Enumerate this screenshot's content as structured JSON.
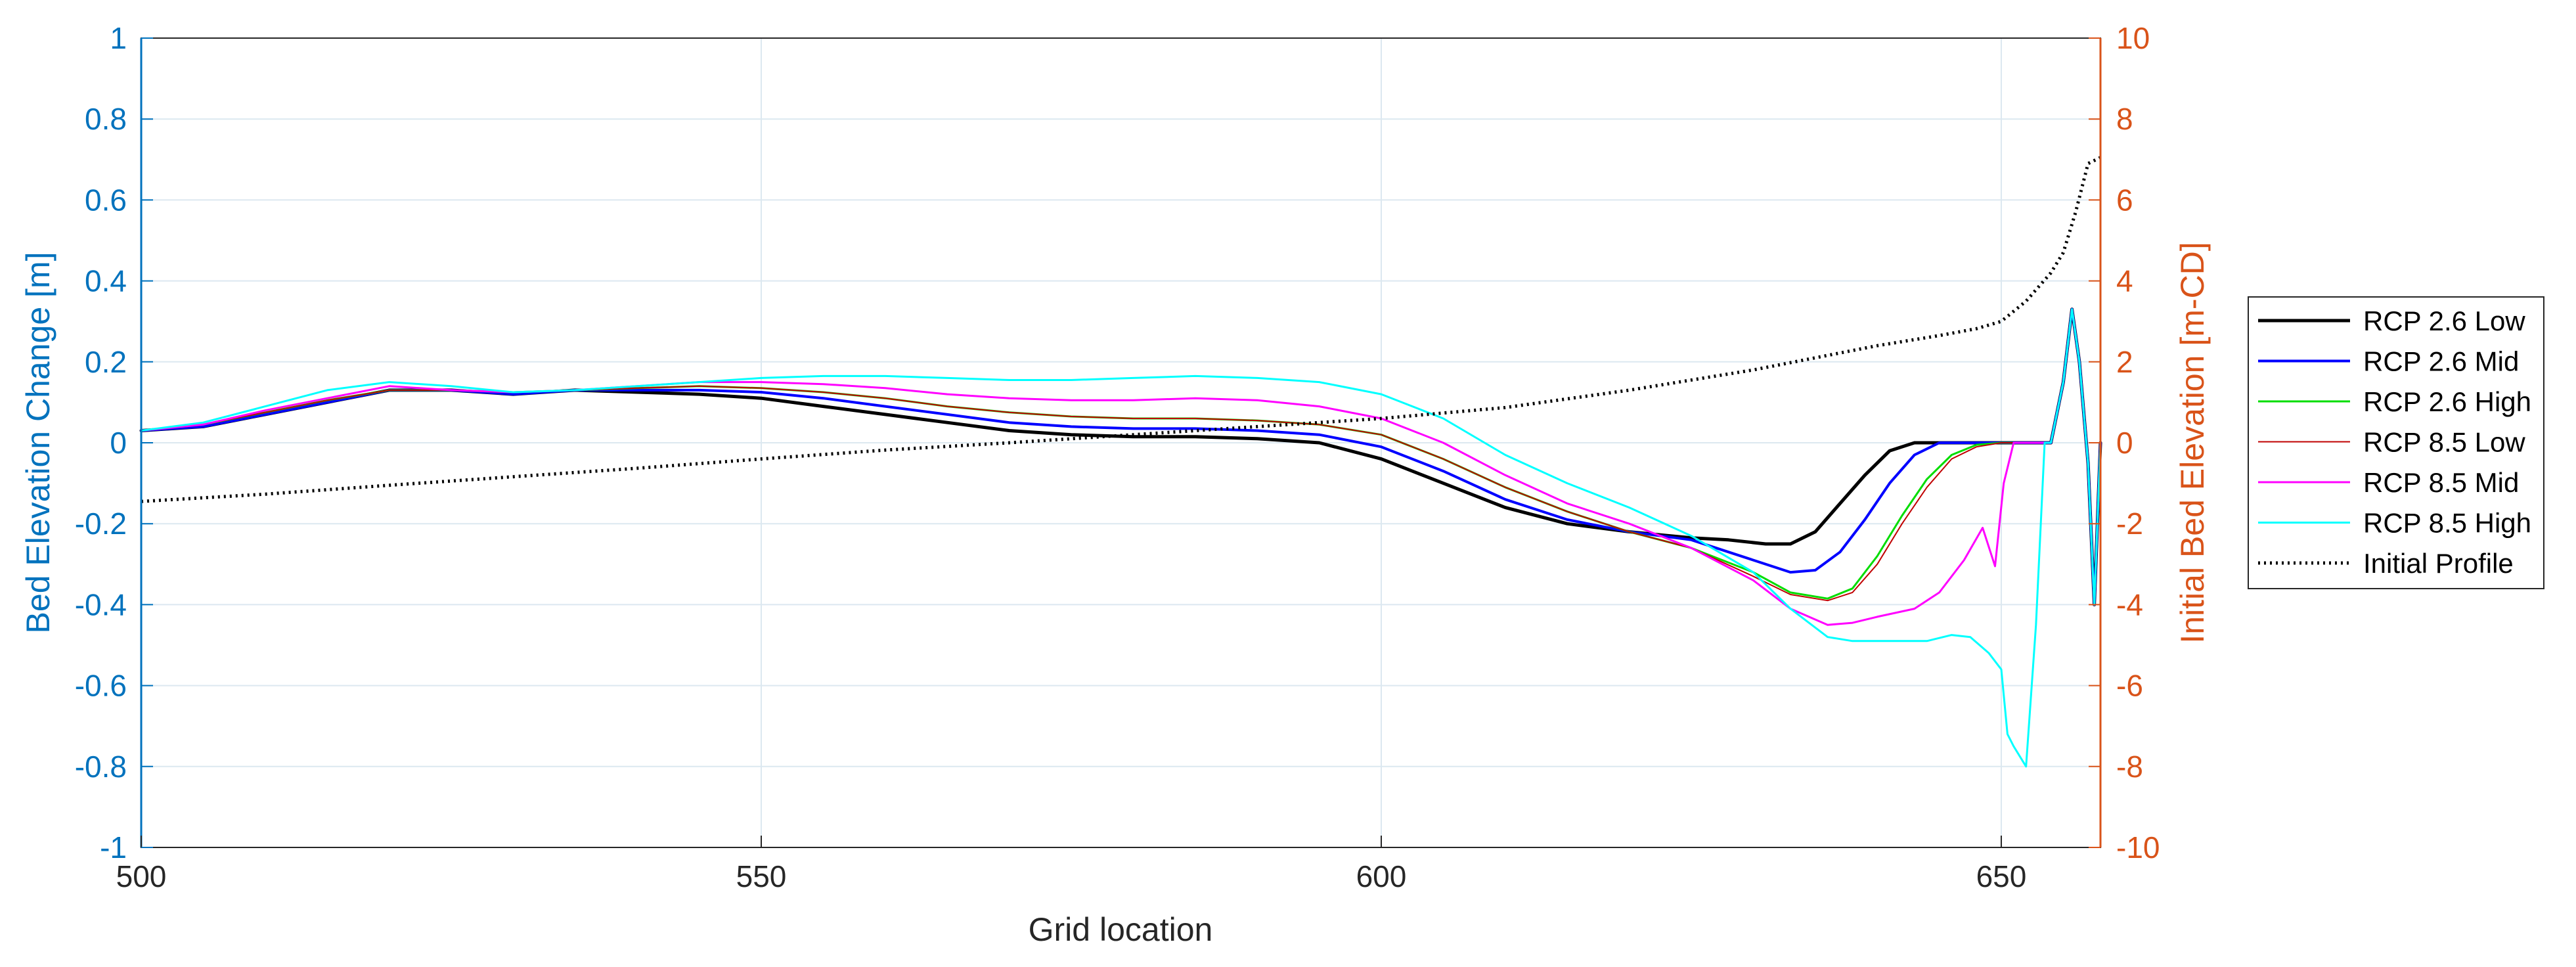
{
  "chart_data": {
    "type": "line",
    "title": "",
    "xlabel": "Grid location",
    "ylabel_left": "Bed Elevation Change [m]",
    "ylabel_right": "Initial Bed Elevation [m-CD]",
    "xlim": [
      500,
      658
    ],
    "ylim_left": [
      -1,
      1
    ],
    "ylim_right": [
      -10,
      10
    ],
    "x_ticks": [
      "500",
      "550",
      "600",
      "650"
    ],
    "x_tick_values": [
      500,
      550,
      600,
      650
    ],
    "y_left_ticks": [
      "1",
      "0.8",
      "0.6",
      "0.4",
      "0.2",
      "0",
      "-0.2",
      "-0.4",
      "-0.6",
      "-0.8",
      "-1"
    ],
    "y_left_tick_values": [
      1,
      0.8,
      0.6,
      0.4,
      0.2,
      0,
      -0.2,
      -0.4,
      -0.6,
      -0.8,
      -1
    ],
    "y_right_ticks": [
      "10",
      "8",
      "6",
      "4",
      "2",
      "0",
      "-2",
      "-4",
      "-6",
      "-8",
      "-10"
    ],
    "y_right_tick_values": [
      10,
      8,
      6,
      4,
      2,
      0,
      -2,
      -4,
      -6,
      -8,
      -10
    ],
    "grid": true,
    "legend_position": "right",
    "series": [
      {
        "name": "RCP 2.6 Low",
        "color": "#000000",
        "axis": "left",
        "style": "solid",
        "width": 5,
        "points": [
          [
            500,
            0.03
          ],
          [
            505,
            0.04
          ],
          [
            510,
            0.07
          ],
          [
            515,
            0.1
          ],
          [
            520,
            0.13
          ],
          [
            525,
            0.13
          ],
          [
            530,
            0.12
          ],
          [
            535,
            0.13
          ],
          [
            540,
            0.125
          ],
          [
            545,
            0.12
          ],
          [
            550,
            0.11
          ],
          [
            555,
            0.09
          ],
          [
            560,
            0.07
          ],
          [
            565,
            0.05
          ],
          [
            570,
            0.03
          ],
          [
            575,
            0.02
          ],
          [
            580,
            0.015
          ],
          [
            585,
            0.015
          ],
          [
            590,
            0.01
          ],
          [
            595,
            0.0
          ],
          [
            600,
            -0.04
          ],
          [
            605,
            -0.1
          ],
          [
            610,
            -0.16
          ],
          [
            615,
            -0.2
          ],
          [
            620,
            -0.22
          ],
          [
            625,
            -0.235
          ],
          [
            628,
            -0.24
          ],
          [
            631,
            -0.25
          ],
          [
            633,
            -0.25
          ],
          [
            635,
            -0.22
          ],
          [
            637,
            -0.15
          ],
          [
            639,
            -0.08
          ],
          [
            641,
            -0.02
          ],
          [
            643,
            0.0
          ],
          [
            645,
            0.0
          ],
          [
            648,
            0.0
          ],
          [
            651,
            0.0
          ],
          [
            653,
            0.0
          ],
          [
            654,
            0.0
          ],
          [
            655,
            0.15
          ],
          [
            655.7,
            0.33
          ],
          [
            656.3,
            0.2
          ],
          [
            657,
            -0.05
          ],
          [
            657.5,
            -0.4
          ],
          [
            658,
            0.0
          ]
        ]
      },
      {
        "name": "RCP 2.6 Mid",
        "color": "#0000FF",
        "axis": "left",
        "style": "solid",
        "width": 4,
        "points": [
          [
            500,
            0.03
          ],
          [
            505,
            0.04
          ],
          [
            510,
            0.07
          ],
          [
            515,
            0.1
          ],
          [
            520,
            0.13
          ],
          [
            525,
            0.13
          ],
          [
            530,
            0.12
          ],
          [
            535,
            0.13
          ],
          [
            540,
            0.13
          ],
          [
            545,
            0.13
          ],
          [
            550,
            0.125
          ],
          [
            555,
            0.11
          ],
          [
            560,
            0.09
          ],
          [
            565,
            0.07
          ],
          [
            570,
            0.05
          ],
          [
            575,
            0.04
          ],
          [
            580,
            0.035
          ],
          [
            585,
            0.035
          ],
          [
            590,
            0.03
          ],
          [
            595,
            0.02
          ],
          [
            600,
            -0.01
          ],
          [
            605,
            -0.07
          ],
          [
            610,
            -0.14
          ],
          [
            615,
            -0.19
          ],
          [
            620,
            -0.22
          ],
          [
            625,
            -0.24
          ],
          [
            630,
            -0.29
          ],
          [
            633,
            -0.32
          ],
          [
            635,
            -0.315
          ],
          [
            637,
            -0.27
          ],
          [
            639,
            -0.19
          ],
          [
            641,
            -0.1
          ],
          [
            643,
            -0.03
          ],
          [
            645,
            0.0
          ],
          [
            648,
            0.0
          ],
          [
            651,
            0.0
          ],
          [
            653,
            0.0
          ],
          [
            654,
            0.0
          ],
          [
            655,
            0.15
          ],
          [
            655.7,
            0.33
          ],
          [
            656.3,
            0.2
          ],
          [
            657,
            -0.05
          ],
          [
            657.5,
            -0.4
          ],
          [
            658,
            0.0
          ]
        ]
      },
      {
        "name": "RCP 2.6 High",
        "color": "#00DD00",
        "axis": "left",
        "style": "solid",
        "width": 3,
        "points": [
          [
            500,
            0.03
          ],
          [
            505,
            0.045
          ],
          [
            510,
            0.075
          ],
          [
            515,
            0.105
          ],
          [
            520,
            0.13
          ],
          [
            525,
            0.13
          ],
          [
            530,
            0.125
          ],
          [
            535,
            0.13
          ],
          [
            540,
            0.135
          ],
          [
            545,
            0.14
          ],
          [
            550,
            0.135
          ],
          [
            555,
            0.125
          ],
          [
            560,
            0.11
          ],
          [
            565,
            0.09
          ],
          [
            570,
            0.075
          ],
          [
            575,
            0.065
          ],
          [
            580,
            0.06
          ],
          [
            585,
            0.06
          ],
          [
            590,
            0.055
          ],
          [
            595,
            0.045
          ],
          [
            600,
            0.02
          ],
          [
            605,
            -0.04
          ],
          [
            610,
            -0.11
          ],
          [
            615,
            -0.17
          ],
          [
            620,
            -0.22
          ],
          [
            625,
            -0.26
          ],
          [
            630,
            -0.32
          ],
          [
            633,
            -0.37
          ],
          [
            636,
            -0.385
          ],
          [
            638,
            -0.36
          ],
          [
            640,
            -0.28
          ],
          [
            642,
            -0.18
          ],
          [
            644,
            -0.09
          ],
          [
            646,
            -0.03
          ],
          [
            648,
            -0.005
          ],
          [
            650,
            0.0
          ],
          [
            652,
            0.0
          ],
          [
            654,
            0.0
          ],
          [
            655,
            0.15
          ],
          [
            655.7,
            0.33
          ],
          [
            656.3,
            0.2
          ],
          [
            657,
            -0.05
          ],
          [
            657.5,
            -0.4
          ],
          [
            658,
            0.0
          ]
        ]
      },
      {
        "name": "RCP 8.5 Low",
        "color": "#C00000",
        "axis": "left",
        "style": "solid",
        "width": 2,
        "points": [
          [
            500,
            0.03
          ],
          [
            505,
            0.045
          ],
          [
            510,
            0.075
          ],
          [
            515,
            0.105
          ],
          [
            520,
            0.13
          ],
          [
            525,
            0.13
          ],
          [
            530,
            0.125
          ],
          [
            535,
            0.13
          ],
          [
            540,
            0.135
          ],
          [
            545,
            0.14
          ],
          [
            550,
            0.135
          ],
          [
            555,
            0.125
          ],
          [
            560,
            0.11
          ],
          [
            565,
            0.09
          ],
          [
            570,
            0.075
          ],
          [
            575,
            0.065
          ],
          [
            580,
            0.06
          ],
          [
            585,
            0.06
          ],
          [
            590,
            0.055
          ],
          [
            595,
            0.045
          ],
          [
            600,
            0.02
          ],
          [
            605,
            -0.04
          ],
          [
            610,
            -0.11
          ],
          [
            615,
            -0.17
          ],
          [
            620,
            -0.22
          ],
          [
            625,
            -0.26
          ],
          [
            630,
            -0.33
          ],
          [
            633,
            -0.375
          ],
          [
            636,
            -0.39
          ],
          [
            638,
            -0.37
          ],
          [
            640,
            -0.3
          ],
          [
            642,
            -0.2
          ],
          [
            644,
            -0.11
          ],
          [
            646,
            -0.04
          ],
          [
            648,
            -0.01
          ],
          [
            650,
            0.0
          ],
          [
            652,
            0.0
          ],
          [
            654,
            0.0
          ],
          [
            655,
            0.15
          ],
          [
            655.7,
            0.33
          ],
          [
            656.3,
            0.2
          ],
          [
            657,
            -0.05
          ],
          [
            657.5,
            -0.4
          ],
          [
            658,
            0.0
          ]
        ]
      },
      {
        "name": "RCP 8.5 Mid",
        "color": "#FF00FF",
        "axis": "left",
        "style": "solid",
        "width": 3,
        "points": [
          [
            500,
            0.03
          ],
          [
            505,
            0.045
          ],
          [
            510,
            0.08
          ],
          [
            515,
            0.11
          ],
          [
            520,
            0.14
          ],
          [
            525,
            0.13
          ],
          [
            530,
            0.125
          ],
          [
            535,
            0.13
          ],
          [
            540,
            0.14
          ],
          [
            545,
            0.15
          ],
          [
            550,
            0.15
          ],
          [
            555,
            0.145
          ],
          [
            560,
            0.135
          ],
          [
            565,
            0.12
          ],
          [
            570,
            0.11
          ],
          [
            575,
            0.105
          ],
          [
            580,
            0.105
          ],
          [
            585,
            0.11
          ],
          [
            590,
            0.105
          ],
          [
            595,
            0.09
          ],
          [
            600,
            0.06
          ],
          [
            605,
            0.0
          ],
          [
            610,
            -0.08
          ],
          [
            615,
            -0.15
          ],
          [
            620,
            -0.2
          ],
          [
            625,
            -0.26
          ],
          [
            630,
            -0.34
          ],
          [
            633,
            -0.41
          ],
          [
            636,
            -0.45
          ],
          [
            638,
            -0.445
          ],
          [
            640,
            -0.43
          ],
          [
            643,
            -0.41
          ],
          [
            645,
            -0.37
          ],
          [
            647,
            -0.29
          ],
          [
            648.5,
            -0.21
          ],
          [
            649.5,
            -0.305
          ],
          [
            650.2,
            -0.1
          ],
          [
            651,
            0.0
          ],
          [
            653,
            0.0
          ],
          [
            654,
            0.0
          ],
          [
            655,
            0.15
          ],
          [
            655.7,
            0.33
          ],
          [
            656.3,
            0.2
          ],
          [
            657,
            -0.05
          ],
          [
            657.5,
            -0.4
          ],
          [
            658,
            0.0
          ]
        ]
      },
      {
        "name": "RCP 8.5 High",
        "color": "#00FFFF",
        "axis": "left",
        "style": "solid",
        "width": 3,
        "points": [
          [
            500,
            0.03
          ],
          [
            505,
            0.05
          ],
          [
            510,
            0.09
          ],
          [
            515,
            0.13
          ],
          [
            520,
            0.15
          ],
          [
            525,
            0.14
          ],
          [
            530,
            0.125
          ],
          [
            535,
            0.13
          ],
          [
            540,
            0.14
          ],
          [
            545,
            0.15
          ],
          [
            550,
            0.16
          ],
          [
            555,
            0.165
          ],
          [
            560,
            0.165
          ],
          [
            565,
            0.16
          ],
          [
            570,
            0.155
          ],
          [
            575,
            0.155
          ],
          [
            580,
            0.16
          ],
          [
            585,
            0.165
          ],
          [
            590,
            0.16
          ],
          [
            595,
            0.15
          ],
          [
            600,
            0.12
          ],
          [
            605,
            0.06
          ],
          [
            610,
            -0.03
          ],
          [
            615,
            -0.1
          ],
          [
            620,
            -0.16
          ],
          [
            625,
            -0.23
          ],
          [
            630,
            -0.32
          ],
          [
            633,
            -0.41
          ],
          [
            636,
            -0.48
          ],
          [
            638,
            -0.49
          ],
          [
            641,
            -0.49
          ],
          [
            644,
            -0.49
          ],
          [
            646,
            -0.475
          ],
          [
            647.5,
            -0.48
          ],
          [
            649,
            -0.52
          ],
          [
            650,
            -0.56
          ],
          [
            650.5,
            -0.72
          ],
          [
            651,
            -0.75
          ],
          [
            652,
            -0.8
          ],
          [
            652.8,
            -0.45
          ],
          [
            653.5,
            0.0
          ],
          [
            654,
            0.0
          ],
          [
            655,
            0.15
          ],
          [
            655.7,
            0.33
          ],
          [
            656.3,
            0.2
          ],
          [
            657,
            -0.05
          ],
          [
            657.5,
            -0.4
          ],
          [
            658,
            0.0
          ]
        ]
      },
      {
        "name": "Initial Profile",
        "color": "#000000",
        "axis": "right",
        "style": "dotted",
        "width": 5,
        "points": [
          [
            500,
            -1.45
          ],
          [
            510,
            -1.27
          ],
          [
            520,
            -1.05
          ],
          [
            530,
            -0.84
          ],
          [
            540,
            -0.63
          ],
          [
            550,
            -0.4
          ],
          [
            560,
            -0.18
          ],
          [
            570,
            0.0
          ],
          [
            580,
            0.2
          ],
          [
            590,
            0.4
          ],
          [
            600,
            0.6
          ],
          [
            610,
            0.87
          ],
          [
            620,
            1.3
          ],
          [
            630,
            1.8
          ],
          [
            640,
            2.4
          ],
          [
            645,
            2.65
          ],
          [
            648,
            2.82
          ],
          [
            650,
            3.0
          ],
          [
            652,
            3.5
          ],
          [
            654,
            4.2
          ],
          [
            655,
            4.7
          ],
          [
            656,
            5.7
          ],
          [
            657,
            6.9
          ],
          [
            658,
            7.05
          ]
        ]
      }
    ]
  }
}
